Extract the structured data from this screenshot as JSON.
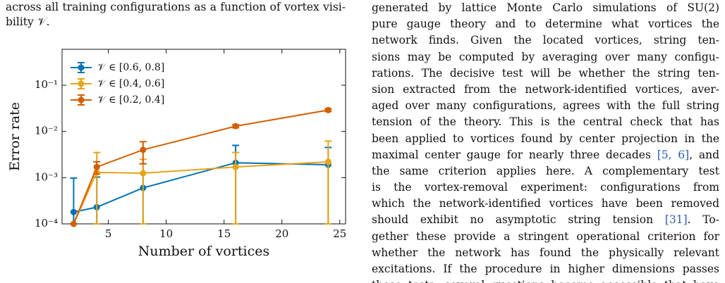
{
  "left_text": {
    "lines": [
      "across all training configurations as a function of vortex visi-",
      "bility 𝒱."
    ]
  },
  "chart_data": {
    "type": "errorbar-line",
    "xlabel": "Number of vortices",
    "ylabel": "Error rate",
    "yscale": "log",
    "xlim": [
      1,
      25.5
    ],
    "ylim": [
      0.0001,
      0.6
    ],
    "xticks": [
      5,
      10,
      15,
      20,
      25
    ],
    "yticks": [
      {
        "value": 0.0001,
        "label": "10⁻⁴"
      },
      {
        "value": 0.001,
        "label": "10⁻³"
      },
      {
        "value": 0.01,
        "label": "10⁻²"
      },
      {
        "value": 0.1,
        "label": "10⁻¹"
      }
    ],
    "legend": "upper left",
    "x": [
      2,
      4,
      8,
      16,
      24
    ],
    "series": [
      {
        "name": "𝒱 ∈ [0.6, 0.8]",
        "color": "#0173b2",
        "values": [
          0.00018,
          0.00023,
          0.0006,
          0.0021,
          0.0019
        ],
        "errors": [
          0.0008,
          0.0008,
          0.0014,
          0.0029,
          0.0026
        ]
      },
      {
        "name": "𝒱 ∈ [0.4, 0.6]",
        "color": "#e8a317",
        "values": [
          0.0001,
          0.0013,
          0.00125,
          0.0017,
          0.0022
        ],
        "errors": [
          0,
          0.0022,
          0.00125,
          0.0018,
          0.004
        ]
      },
      {
        "name": "𝒱 ∈ [0.2, 0.4]",
        "color": "#d55e00",
        "values": [
          0.0001,
          0.0017,
          0.004,
          0.013,
          0.029
        ],
        "errors": [
          0,
          0.0005,
          0.002,
          0.001,
          0.002
        ]
      }
    ]
  },
  "right_text": {
    "lines": [
      "generated by lattice Monte Carlo simulations of SU(2)",
      "pure gauge theory and to determine what vortices the",
      "network finds. Given the located vortices, string ten-",
      "sions may be computed by averaging over many configu-",
      "rations. The decisive test will be whether the string ten-",
      "sion extracted from the network-identified vortices, aver-",
      "aged over many configurations, agrees with the full string",
      "tension of the theory. This is the central check that has",
      "been applied to vortices found by center projection in the",
      [
        "maximal center gauge for nearly three decades ",
        "[5, 6]",
        ", and"
      ],
      "the same criterion applies here. A complementary test",
      "is the vortex-removal experiment: configurations from",
      "which the network-identified vortices have been removed",
      [
        "should exhibit no asymptotic string tension ",
        "[31]",
        ". To-"
      ],
      "gether these provide a stringent operational criterion for",
      "whether the network has found the physically relevant",
      "excitations. If the procedure in higher dimensions passes",
      "these tests, several questions become accessible that have"
    ]
  }
}
